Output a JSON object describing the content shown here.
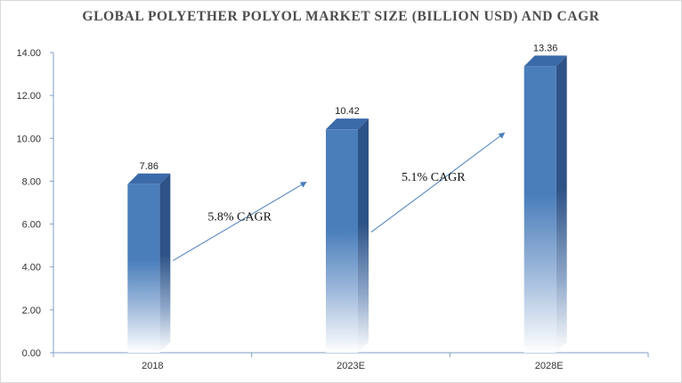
{
  "chart_data": {
    "type": "bar",
    "title": "GLOBAL POLYETHER  POLYOL  MARKET SIZE  (BILLION USD) AND CAGR",
    "categories": [
      "2018",
      "2023E",
      "2028E"
    ],
    "values": [
      7.86,
      10.42,
      13.36
    ],
    "data_labels": [
      "7.86",
      "10.42",
      "13.36"
    ],
    "ylim": [
      0,
      14
    ],
    "yticks": [
      "0.00",
      "2.00",
      "4.00",
      "6.00",
      "8.00",
      "10.00",
      "12.00",
      "14.00"
    ],
    "grid": false,
    "legend": "none",
    "bar_style": "3d-gradient",
    "colors": {
      "bar_front": "#4a7ebb",
      "bar_side": "#2e5387",
      "bar_top": "#3b6aa8",
      "bar_fade": "#ffffff",
      "arrow": "#4a7ebb",
      "axis": "#7f9fc4"
    },
    "annotations": [
      {
        "text": "5.8% CAGR",
        "from_category": "2018",
        "to_category": "2023E"
      },
      {
        "text": "5.1% CAGR",
        "from_category": "2023E",
        "to_category": "2028E"
      }
    ]
  }
}
